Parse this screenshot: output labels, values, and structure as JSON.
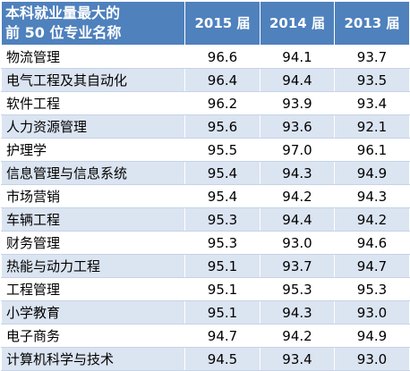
{
  "header": {
    "title_line1": "本科就业量最大的",
    "title_line2": "前 50 位专业名称",
    "years": [
      "2015 届",
      "2014 届",
      "2013 届"
    ]
  },
  "rows": [
    {
      "name": "物流管理",
      "y2015": "96.6",
      "y2014": "94.1",
      "y2013": "93.7"
    },
    {
      "name": "电气工程及其自动化",
      "y2015": "96.4",
      "y2014": "94.4",
      "y2013": "93.5"
    },
    {
      "name": "软件工程",
      "y2015": "96.2",
      "y2014": "93.9",
      "y2013": "93.4"
    },
    {
      "name": "人力资源管理",
      "y2015": "95.6",
      "y2014": "93.6",
      "y2013": "92.1"
    },
    {
      "name": "护理学",
      "y2015": "95.5",
      "y2014": "97.0",
      "y2013": "96.1"
    },
    {
      "name": "信息管理与信息系统",
      "y2015": "95.4",
      "y2014": "94.3",
      "y2013": "94.9"
    },
    {
      "name": "市场营销",
      "y2015": "95.4",
      "y2014": "94.2",
      "y2013": "94.3"
    },
    {
      "name": "车辆工程",
      "y2015": "95.3",
      "y2014": "94.4",
      "y2013": "94.2"
    },
    {
      "name": "财务管理",
      "y2015": "95.3",
      "y2014": "93.0",
      "y2013": "94.6"
    },
    {
      "name": "热能与动力工程",
      "y2015": "95.1",
      "y2014": "93.7",
      "y2013": "94.7"
    },
    {
      "name": "工程管理",
      "y2015": "95.1",
      "y2014": "95.3",
      "y2013": "95.3"
    },
    {
      "name": "小学教育",
      "y2015": "95.1",
      "y2014": "94.3",
      "y2013": "93.0"
    },
    {
      "name": "电子商务",
      "y2015": "94.7",
      "y2014": "94.2",
      "y2013": "94.9"
    },
    {
      "name": "计算机科学与技术",
      "y2015": "94.5",
      "y2014": "93.4",
      "y2013": "93.0"
    }
  ],
  "colors": {
    "header_bg": "#4f81bd",
    "header_text": "#ffffff",
    "row_alt_bg": "#dbe4f1",
    "row_bg": "#ffffff"
  }
}
